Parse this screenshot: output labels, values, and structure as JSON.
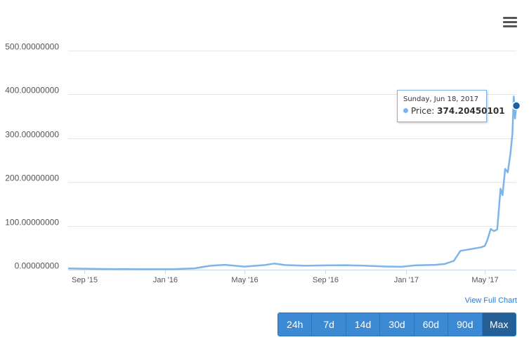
{
  "chart_data": {
    "type": "line",
    "title": "",
    "xlabel": "",
    "ylabel": "",
    "ylim": [
      0,
      500
    ],
    "y_ticks": [
      0,
      100,
      200,
      300,
      400,
      500
    ],
    "y_tick_labels": [
      "0.00000000",
      "100.00000000",
      "200.00000000",
      "300.00000000",
      "400.00000000",
      "500.00000000"
    ],
    "x_tick_labels": [
      "Sep '15",
      "Jan '16",
      "May '16",
      "Sep '16",
      "Jan '17",
      "May '17"
    ],
    "x_tick_dates": [
      "2015-09-01",
      "2016-01-01",
      "2016-05-01",
      "2016-09-01",
      "2017-01-01",
      "2017-05-01"
    ],
    "xlim": [
      "2015-08-07",
      "2017-06-18"
    ],
    "grid": true,
    "legend": "none",
    "series": [
      {
        "color": "#7cb5ec",
        "x": [
          "2015-08-07",
          "2015-10-01",
          "2015-12-01",
          "2016-01-15",
          "2016-02-15",
          "2016-03-10",
          "2016-04-01",
          "2016-05-01",
          "2016-06-01",
          "2016-06-15",
          "2016-07-01",
          "2016-08-01",
          "2016-09-01",
          "2016-10-01",
          "2016-11-01",
          "2016-12-01",
          "2016-12-25",
          "2017-01-15",
          "2017-02-15",
          "2017-03-01",
          "2017-03-15",
          "2017-03-25",
          "2017-04-10",
          "2017-04-25",
          "2017-05-01",
          "2017-05-05",
          "2017-05-10",
          "2017-05-15",
          "2017-05-20",
          "2017-05-25",
          "2017-05-28",
          "2017-06-01",
          "2017-06-05",
          "2017-06-09",
          "2017-06-12",
          "2017-06-14",
          "2017-06-16",
          "2017-06-18"
        ],
        "values": [
          2.8,
          1.5,
          1.0,
          1.2,
          3.0,
          9.0,
          11.0,
          7.0,
          10.5,
          14.0,
          10.5,
          9.0,
          9.8,
          10.3,
          9.0,
          7.2,
          6.5,
          9.8,
          11.0,
          13.0,
          20.0,
          43.0,
          47.0,
          51.0,
          54.0,
          68.0,
          93.0,
          88.0,
          92.0,
          185.0,
          170.0,
          230.0,
          222.0,
          265.0,
          310.0,
          395.0,
          345.0,
          374.2
        ]
      }
    ]
  },
  "tooltip": {
    "date": "Sunday, Jun 18, 2017",
    "label": "Price:",
    "value": "374.20450101"
  },
  "links": {
    "view_full_chart": "View Full Chart"
  },
  "range_buttons": [
    "24h",
    "7d",
    "14d",
    "30d",
    "60d",
    "90d",
    "Max"
  ],
  "active_range": "Max"
}
